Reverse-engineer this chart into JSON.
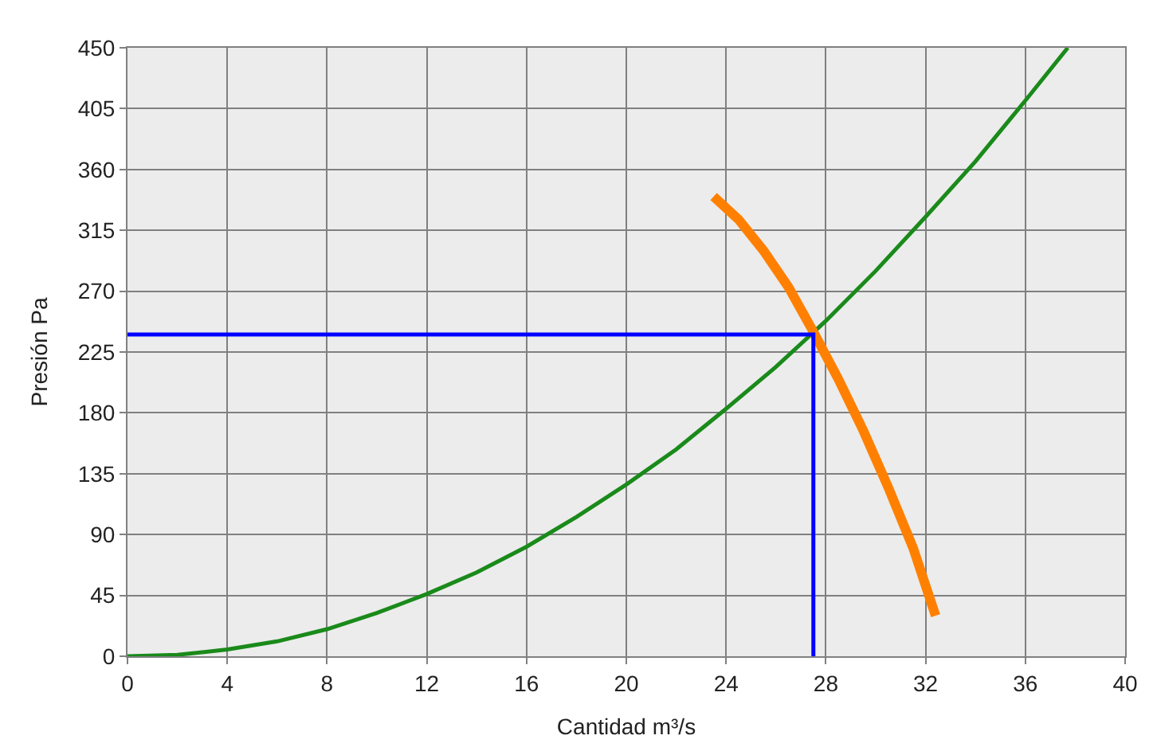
{
  "chart_data": {
    "type": "line",
    "xlabel": "Cantidad m³/s",
    "ylabel": "Presión Pa",
    "xlim": [
      0,
      40
    ],
    "xticks": [
      0,
      4,
      8,
      12,
      16,
      20,
      24,
      28,
      32,
      36,
      40
    ],
    "ylim": [
      0,
      450
    ],
    "yticks": [
      0,
      45,
      90,
      135,
      180,
      225,
      270,
      315,
      360,
      405,
      450
    ],
    "grid": true,
    "marker": "none",
    "line_style": "solid",
    "series": [
      {
        "color": "#1a8a1a",
        "x": [
          0,
          2,
          4,
          6,
          8,
          10,
          12,
          14,
          16,
          18,
          20,
          22,
          24,
          26,
          28,
          30,
          32,
          34,
          36,
          37.7
        ],
        "values": [
          0,
          1,
          5,
          11,
          20,
          32,
          46,
          62,
          81,
          103,
          127,
          153,
          183,
          214,
          248,
          285,
          325,
          366,
          411,
          450
        ]
      },
      {
        "color": "#ff8000",
        "x": [
          23.5,
          24.5,
          25.5,
          26.5,
          27.5,
          28.5,
          29.5,
          30.5,
          31.5,
          32.4
        ],
        "values": [
          340,
          323,
          300,
          273,
          240,
          205,
          167,
          125,
          80,
          30
        ]
      },
      {
        "color": "#0000ff",
        "x": [
          0,
          27.5,
          27.5
        ],
        "values": [
          238,
          238,
          0
        ]
      }
    ]
  }
}
